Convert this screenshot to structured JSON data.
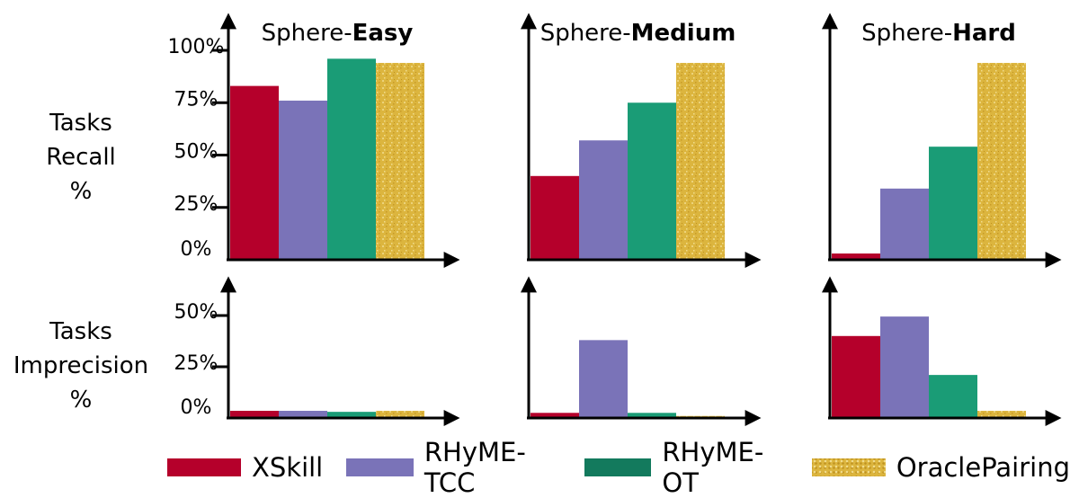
{
  "colors": {
    "XSkill": "#b5002b",
    "RHyME-TCC": "#7a73b8",
    "RHyME-OT": "#1a9c76",
    "OraclePairing": "#dcb53e"
  },
  "row_labels": {
    "recall": [
      "Tasks",
      "Recall",
      "%"
    ],
    "imprecision": [
      "Tasks",
      "Imprecision",
      "%"
    ]
  },
  "legend": [
    "XSkill",
    "RHyME-TCC",
    "RHyME-OT",
    "OraclePairing"
  ],
  "chart_data": [
    {
      "type": "bar",
      "title_prefix": "Sphere-",
      "title_bold": "Easy",
      "metric": "Tasks Recall %",
      "ylim": [
        0,
        100
      ],
      "yticks": [
        "0%",
        "25%",
        "50%",
        "75%",
        "100%"
      ],
      "series": [
        {
          "name": "XSkill",
          "value": 83
        },
        {
          "name": "RHyME-TCC",
          "value": 76
        },
        {
          "name": "RHyME-OT",
          "value": 96
        },
        {
          "name": "OraclePairing",
          "value": 94
        }
      ]
    },
    {
      "type": "bar",
      "title_prefix": "Sphere-",
      "title_bold": "Medium",
      "metric": "Tasks Recall %",
      "ylim": [
        0,
        100
      ],
      "yticks": [],
      "series": [
        {
          "name": "XSkill",
          "value": 40
        },
        {
          "name": "RHyME-TCC",
          "value": 57
        },
        {
          "name": "RHyME-OT",
          "value": 75
        },
        {
          "name": "OraclePairing",
          "value": 94
        }
      ]
    },
    {
      "type": "bar",
      "title_prefix": "Sphere-",
      "title_bold": "Hard",
      "metric": "Tasks Recall %",
      "ylim": [
        0,
        100
      ],
      "yticks": [],
      "series": [
        {
          "name": "XSkill",
          "value": 3
        },
        {
          "name": "RHyME-TCC",
          "value": 34
        },
        {
          "name": "RHyME-OT",
          "value": 54
        },
        {
          "name": "OraclePairing",
          "value": 94
        }
      ]
    },
    {
      "type": "bar",
      "title_prefix": "",
      "title_bold": "",
      "metric": "Tasks Imprecision %",
      "ylim": [
        0,
        50
      ],
      "yticks": [
        "0%",
        "25%",
        "50%"
      ],
      "series": [
        {
          "name": "XSkill",
          "value": 3.5
        },
        {
          "name": "RHyME-TCC",
          "value": 3.5
        },
        {
          "name": "RHyME-OT",
          "value": 3
        },
        {
          "name": "OraclePairing",
          "value": 3.5
        }
      ]
    },
    {
      "type": "bar",
      "title_prefix": "",
      "title_bold": "",
      "metric": "Tasks Imprecision %",
      "ylim": [
        0,
        50
      ],
      "yticks": [],
      "series": [
        {
          "name": "XSkill",
          "value": 2.5
        },
        {
          "name": "RHyME-TCC",
          "value": 38
        },
        {
          "name": "RHyME-OT",
          "value": 2.5
        },
        {
          "name": "OraclePairing",
          "value": 1
        }
      ]
    },
    {
      "type": "bar",
      "title_prefix": "",
      "title_bold": "",
      "metric": "Tasks Imprecision %",
      "ylim": [
        0,
        50
      ],
      "yticks": [],
      "series": [
        {
          "name": "XSkill",
          "value": 40
        },
        {
          "name": "RHyME-TCC",
          "value": 49.5
        },
        {
          "name": "RHyME-OT",
          "value": 21
        },
        {
          "name": "OraclePairing",
          "value": 3.5
        }
      ]
    }
  ]
}
